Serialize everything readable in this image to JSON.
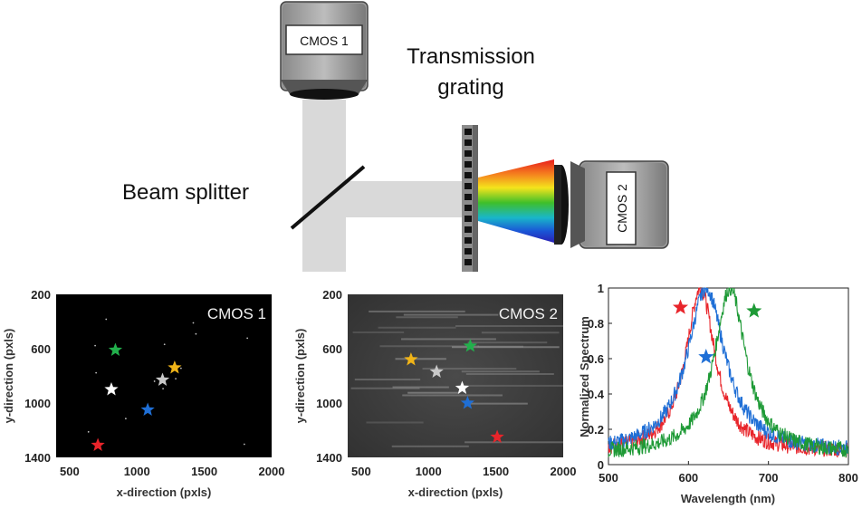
{
  "diagram": {
    "labels": {
      "cmos1": "CMOS 1",
      "cmos2": "CMOS 2",
      "grating_line1": "Transmission",
      "grating_line2": "grating",
      "beam_splitter": "Beam splitter"
    }
  },
  "chart_data": [
    {
      "type": "scatter",
      "title": "CMOS 1",
      "xlabel": "x-direction (pxls)",
      "ylabel": "y-direction (pxls)",
      "xlim": [
        400,
        2000
      ],
      "ylim": [
        200,
        1400
      ],
      "y_inverted": true,
      "x_ticks": [
        "500",
        "1000",
        "1500",
        "2000"
      ],
      "y_ticks": [
        "200",
        "600",
        "1000",
        "1400"
      ],
      "background": "#000000",
      "points": [
        {
          "x": 840,
          "y": 610,
          "color": "#22b04c"
        },
        {
          "x": 1280,
          "y": 740,
          "color": "#f0b418"
        },
        {
          "x": 1190,
          "y": 830,
          "color": "#c8c8c8"
        },
        {
          "x": 810,
          "y": 900,
          "color": "#ffffff"
        },
        {
          "x": 1080,
          "y": 1050,
          "color": "#1f6fd6"
        },
        {
          "x": 710,
          "y": 1310,
          "color": "#e8242a"
        }
      ]
    },
    {
      "type": "scatter",
      "title": "CMOS 2",
      "xlabel": "x-direction (pxls)",
      "ylabel": "y-direction (pxls)",
      "xlim": [
        400,
        2000
      ],
      "ylim": [
        200,
        1400
      ],
      "y_inverted": true,
      "x_ticks": [
        "500",
        "1000",
        "1500",
        "2000"
      ],
      "y_ticks": [
        "200",
        "600",
        "1000",
        "1400"
      ],
      "background": "#3a3a3a",
      "points": [
        {
          "x": 1310,
          "y": 580,
          "color": "#22b04c"
        },
        {
          "x": 870,
          "y": 680,
          "color": "#f0b418"
        },
        {
          "x": 1060,
          "y": 770,
          "color": "#c8c8c8"
        },
        {
          "x": 1250,
          "y": 890,
          "color": "#ffffff"
        },
        {
          "x": 1290,
          "y": 1000,
          "color": "#1f6fd6"
        },
        {
          "x": 1510,
          "y": 1250,
          "color": "#e8242a"
        }
      ]
    },
    {
      "type": "line",
      "xlabel": "Wavelength (nm)",
      "ylabel": "Normalized Spectrum",
      "xlim": [
        500,
        800
      ],
      "ylim": [
        0,
        1
      ],
      "x_ticks": [
        "500",
        "600",
        "700",
        "800"
      ],
      "y_ticks": [
        "0",
        "0.2",
        "0.4",
        "0.6",
        "0.8",
        "1"
      ],
      "series": [
        {
          "color": "#e8242a",
          "center": 615,
          "fwhm": 45,
          "baseline": 0.07,
          "noise": 0.045
        },
        {
          "color": "#1f6fd6",
          "center": 622,
          "fwhm": 58,
          "baseline": 0.07,
          "noise": 0.045
        },
        {
          "color": "#1e9a36",
          "center": 652,
          "fwhm": 48,
          "baseline": 0.06,
          "noise": 0.045
        }
      ],
      "stars": [
        {
          "x": 590,
          "y": 0.89,
          "color": "#e8242a"
        },
        {
          "x": 622,
          "y": 0.61,
          "color": "#1f6fd6"
        },
        {
          "x": 682,
          "y": 0.87,
          "color": "#1e9a36"
        }
      ]
    }
  ]
}
